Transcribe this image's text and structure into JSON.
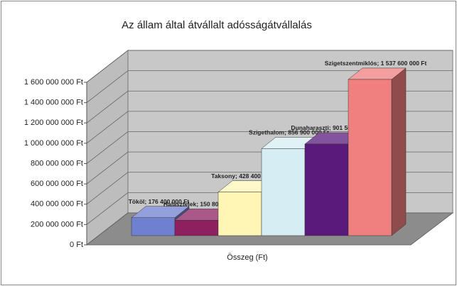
{
  "chart_data": {
    "type": "bar3d",
    "title": "Az állam által átvállalt adósságátvállalás",
    "x_label": "Összeg (Ft)",
    "categories": [
      "Tököl",
      "Halásztelek",
      "Taksony",
      "Szigethalom",
      "Dunaharaszti",
      "Szigetszentmiklós"
    ],
    "values": [
      176400000,
      150800000,
      428400000,
      856900000,
      901500000,
      1537600000
    ],
    "value_labels": [
      "Tököl; 176 400 000 Ft",
      "Halásztelek; 150 800 000 Ft",
      "Taksony; 428 400 000 Ft",
      "Szigethalom; 856 900 000 Ft",
      "Dunaharaszti; 901 500 000 Ft",
      "Szigetszentmiklós; 1 537 600 000 Ft"
    ],
    "colors": [
      "#6f80d0",
      "#8e2060",
      "#fff5b5",
      "#d6eef3",
      "#5a1a7c",
      "#f07f7f"
    ],
    "ylim": [
      0,
      1600000000
    ],
    "yticks": [
      {
        "value": 0,
        "label": "0 Ft"
      },
      {
        "value": 200000000,
        "label": "200 000 000 Ft"
      },
      {
        "value": 400000000,
        "label": "400 000 000 Ft"
      },
      {
        "value": 600000000,
        "label": "600 000 000 Ft"
      },
      {
        "value": 800000000,
        "label": "800 000 000 Ft"
      },
      {
        "value": 1000000000,
        "label": "1 000 000 000 Ft"
      },
      {
        "value": 1200000000,
        "label": "1 200 000 000 Ft"
      },
      {
        "value": 1400000000,
        "label": "1 400 000 000 Ft"
      },
      {
        "value": 1600000000,
        "label": "1 600 000 000 Ft"
      }
    ],
    "grid": true
  }
}
